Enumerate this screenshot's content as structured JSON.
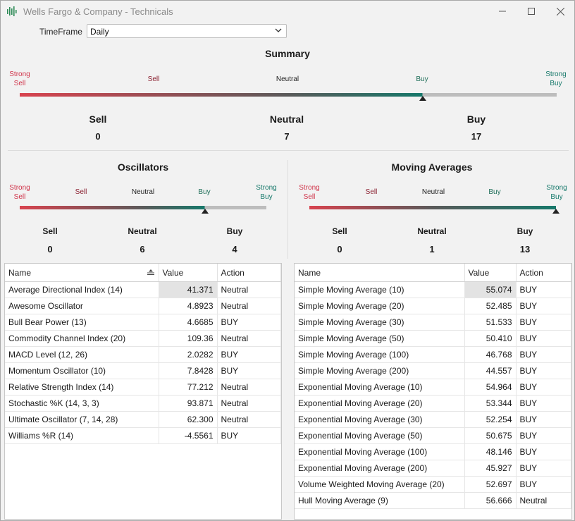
{
  "window": {
    "title": "Wells Fargo & Company - Technicals"
  },
  "controls": {
    "minimize": "—",
    "maximize": "☐",
    "close": "✕"
  },
  "timeframe": {
    "label": "TimeFrame",
    "value": "Daily"
  },
  "gauge_labels": {
    "strong_sell_1": "Strong",
    "strong_sell_2": "Sell",
    "sell": "Sell",
    "neutral": "Neutral",
    "buy": "Buy",
    "strong_buy_1": "Strong",
    "strong_buy_2": "Buy"
  },
  "summary": {
    "title": "Summary",
    "sell_label": "Sell",
    "neutral_label": "Neutral",
    "buy_label": "Buy",
    "sell": "0",
    "neutral": "7",
    "buy": "17",
    "gauge_level": 0.75
  },
  "oscillators": {
    "title": "Oscillators",
    "sell_label": "Sell",
    "neutral_label": "Neutral",
    "buy_label": "Buy",
    "sell": "0",
    "neutral": "6",
    "buy": "4",
    "gauge_level": 0.75,
    "columns": {
      "name": "Name",
      "value": "Value",
      "action": "Action"
    },
    "rows": [
      {
        "name": "Average Directional Index (14)",
        "value": "41.371",
        "action": "Neutral"
      },
      {
        "name": "Awesome Oscillator",
        "value": "4.8923",
        "action": "Neutral"
      },
      {
        "name": "Bull Bear Power (13)",
        "value": "4.6685",
        "action": "BUY"
      },
      {
        "name": "Commodity Channel Index (20)",
        "value": "109.36",
        "action": "Neutral"
      },
      {
        "name": "MACD Level (12, 26)",
        "value": "2.0282",
        "action": "BUY"
      },
      {
        "name": "Momentum Oscillator (10)",
        "value": "7.8428",
        "action": "BUY"
      },
      {
        "name": "Relative Strength Index (14)",
        "value": "77.212",
        "action": "Neutral"
      },
      {
        "name": "Stochastic %K (14, 3, 3)",
        "value": "93.871",
        "action": "Neutral"
      },
      {
        "name": "Ultimate Oscillator (7, 14, 28)",
        "value": "62.300",
        "action": "Neutral"
      },
      {
        "name": "Williams %R (14)",
        "value": "-4.5561",
        "action": "BUY"
      }
    ]
  },
  "moving_averages": {
    "title": "Moving Averages",
    "sell_label": "Sell",
    "neutral_label": "Neutral",
    "buy_label": "Buy",
    "sell": "0",
    "neutral": "1",
    "buy": "13",
    "gauge_level": 1.0,
    "columns": {
      "name": "Name",
      "value": "Value",
      "action": "Action"
    },
    "rows": [
      {
        "name": "Simple Moving Average (10)",
        "value": "55.074",
        "action": "BUY"
      },
      {
        "name": "Simple Moving Average (20)",
        "value": "52.485",
        "action": "BUY"
      },
      {
        "name": "Simple Moving Average (30)",
        "value": "51.533",
        "action": "BUY"
      },
      {
        "name": "Simple Moving Average (50)",
        "value": "50.410",
        "action": "BUY"
      },
      {
        "name": "Simple Moving Average (100)",
        "value": "46.768",
        "action": "BUY"
      },
      {
        "name": "Simple Moving Average (200)",
        "value": "44.557",
        "action": "BUY"
      },
      {
        "name": "Exponential Moving Average (10)",
        "value": "54.964",
        "action": "BUY"
      },
      {
        "name": "Exponential Moving Average (20)",
        "value": "53.344",
        "action": "BUY"
      },
      {
        "name": "Exponential Moving Average (30)",
        "value": "52.254",
        "action": "BUY"
      },
      {
        "name": "Exponential Moving Average (50)",
        "value": "50.675",
        "action": "BUY"
      },
      {
        "name": "Exponential Moving Average (100)",
        "value": "48.146",
        "action": "BUY"
      },
      {
        "name": "Exponential Moving Average (200)",
        "value": "45.927",
        "action": "BUY"
      },
      {
        "name": "Volume Weighted Moving Average (20)",
        "value": "52.697",
        "action": "BUY"
      },
      {
        "name": "Hull Moving Average (9)",
        "value": "56.666",
        "action": "Neutral"
      }
    ]
  },
  "colors": {
    "strong_sell": "#d8434f",
    "neutral_mid": "#5a5a5a",
    "buy": "#16786a",
    "track": "#bdbdbd"
  }
}
